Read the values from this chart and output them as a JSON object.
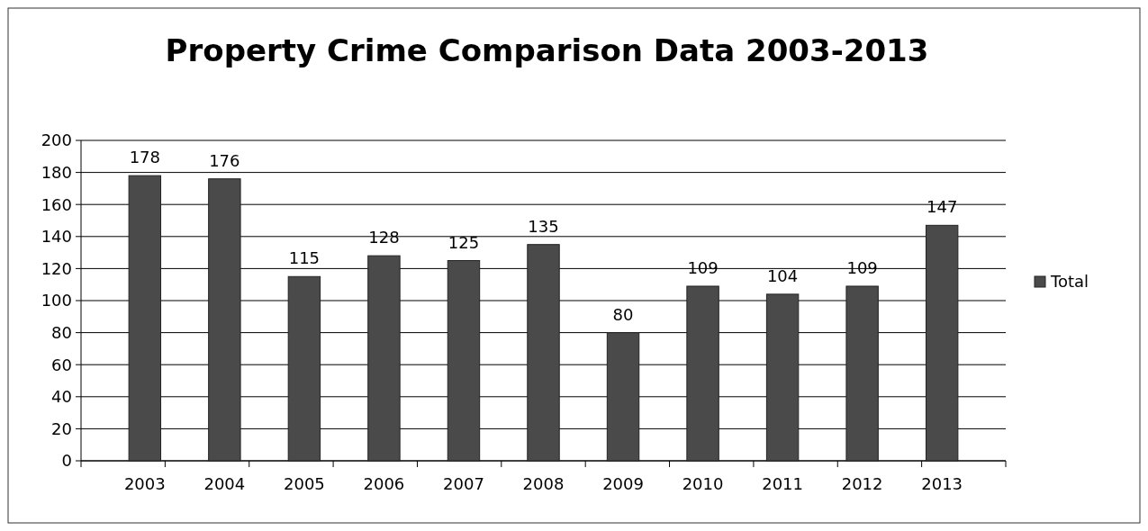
{
  "chart_data": {
    "type": "bar",
    "title": "Property Crime Comparison Data 2003-2013",
    "categories": [
      "2003",
      "2004",
      "2005",
      "2006",
      "2007",
      "2008",
      "2009",
      "2010",
      "2011",
      "2012",
      "2013"
    ],
    "series": [
      {
        "name": "Total",
        "color": "#4a4a4a",
        "values": [
          178,
          176,
          115,
          128,
          125,
          135,
          80,
          109,
          104,
          109,
          147
        ]
      }
    ],
    "ylim": [
      0,
      200
    ],
    "yticks": [
      0,
      20,
      40,
      60,
      80,
      100,
      120,
      140,
      160,
      180,
      200
    ],
    "grid": "y",
    "legend": "right",
    "data_labels": true
  }
}
